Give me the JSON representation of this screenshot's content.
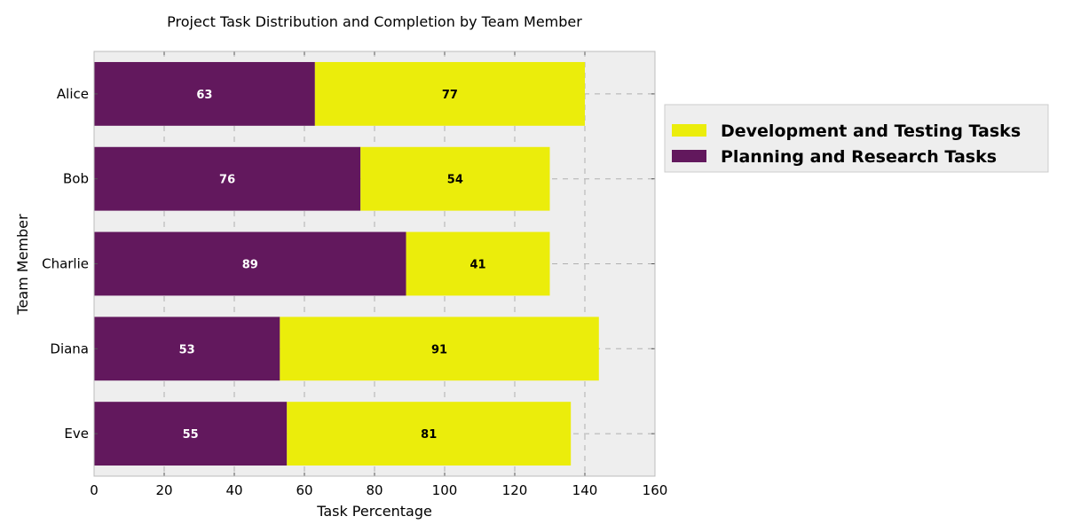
{
  "chart_data": {
    "type": "bar",
    "orientation": "horizontal",
    "stacked": true,
    "title": "Project Task Distribution and Completion by Team Member",
    "xlabel": "Task Percentage",
    "ylabel": "Team Member",
    "xlim": [
      0,
      160
    ],
    "xticks": [
      "0",
      "20",
      "40",
      "60",
      "80",
      "100",
      "120",
      "140",
      "160"
    ],
    "categories": [
      "Alice",
      "Bob",
      "Charlie",
      "Diana",
      "Eve"
    ],
    "series": [
      {
        "name": "Planning and Research Tasks",
        "values": [
          63,
          76,
          89,
          53,
          55
        ],
        "color": "#62185d",
        "label_color": "#ffffff"
      },
      {
        "name": "Development and Testing Tasks",
        "values": [
          77,
          54,
          41,
          91,
          81
        ],
        "color": "#ebed0b",
        "label_color": "#000000"
      }
    ],
    "legend": {
      "placement": "outside-right",
      "entries": [
        "Development and Testing Tasks",
        "Planning and Research Tasks"
      ]
    },
    "grid": true,
    "background": "#eeeeee"
  }
}
